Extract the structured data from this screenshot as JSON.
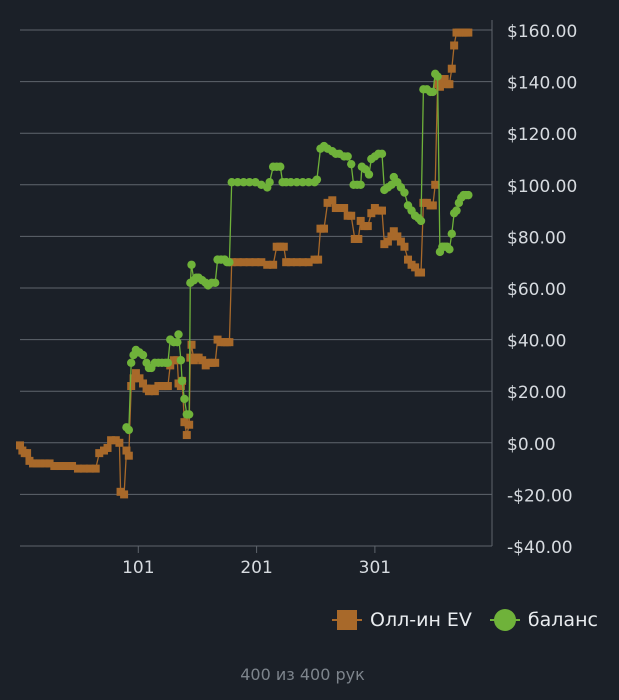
{
  "footer": {
    "summary": "400 из 400 рук"
  },
  "legend": {
    "items": [
      {
        "label": "Олл-ин EV",
        "marker": "square",
        "color": "#a8692a"
      },
      {
        "label": "баланс",
        "marker": "circle",
        "color": "#6fb23a"
      }
    ]
  },
  "colors": {
    "background": "#1b2028",
    "grid": "#5f656d",
    "tick_text": "#d7dbe0"
  },
  "chart_data": {
    "type": "line",
    "xlim": [
      1,
      400
    ],
    "ylim": [
      -40,
      160
    ],
    "x_ticks": [
      {
        "value": 101,
        "label": "101"
      },
      {
        "value": 201,
        "label": "201"
      },
      {
        "value": 301,
        "label": "301"
      }
    ],
    "y_ticks": [
      {
        "value": 160,
        "label": "$160.00"
      },
      {
        "value": 140,
        "label": "$140.00"
      },
      {
        "value": 120,
        "label": "$120.00"
      },
      {
        "value": 100,
        "label": "$100.00"
      },
      {
        "value": 80,
        "label": "$80.00"
      },
      {
        "value": 60,
        "label": "$60.00"
      },
      {
        "value": 40,
        "label": "$40.00"
      },
      {
        "value": 20,
        "label": "$20.00"
      },
      {
        "value": 0,
        "label": "$0.00"
      },
      {
        "value": -20,
        "label": "-$20.00"
      },
      {
        "value": -40,
        "label": "-$40.00"
      }
    ],
    "y_axis_position": "right",
    "grid": true,
    "legend_position": "bottom-right",
    "series": [
      {
        "name": "Олл-ин EV",
        "color": "#a8692a",
        "marker": "square",
        "points": [
          [
            1,
            -1
          ],
          [
            3,
            -3
          ],
          [
            5,
            -4
          ],
          [
            7,
            -4
          ],
          [
            9,
            -7
          ],
          [
            12,
            -8
          ],
          [
            15,
            -8
          ],
          [
            18,
            -8
          ],
          [
            22,
            -8
          ],
          [
            26,
            -8
          ],
          [
            30,
            -9
          ],
          [
            35,
            -9
          ],
          [
            40,
            -9
          ],
          [
            45,
            -9
          ],
          [
            50,
            -10
          ],
          [
            55,
            -10
          ],
          [
            60,
            -10
          ],
          [
            65,
            -10
          ],
          [
            68,
            -4
          ],
          [
            72,
            -3
          ],
          [
            75,
            -2
          ],
          [
            78,
            1
          ],
          [
            82,
            1
          ],
          [
            85,
            0
          ],
          [
            86,
            -19
          ],
          [
            89,
            -20
          ],
          [
            91,
            -3
          ],
          [
            93,
            -5
          ],
          [
            95,
            22
          ],
          [
            97,
            25
          ],
          [
            99,
            27
          ],
          [
            102,
            25
          ],
          [
            105,
            23
          ],
          [
            108,
            21
          ],
          [
            110,
            20
          ],
          [
            112,
            21
          ],
          [
            115,
            20
          ],
          [
            118,
            22
          ],
          [
            121,
            22
          ],
          [
            124,
            22
          ],
          [
            126,
            22
          ],
          [
            128,
            30
          ],
          [
            131,
            32
          ],
          [
            134,
            32
          ],
          [
            135,
            23
          ],
          [
            137,
            22
          ],
          [
            138,
            24
          ],
          [
            140,
            8
          ],
          [
            142,
            3
          ],
          [
            144,
            7
          ],
          [
            145,
            33
          ],
          [
            146,
            38
          ],
          [
            148,
            32
          ],
          [
            150,
            33
          ],
          [
            152,
            33
          ],
          [
            155,
            32
          ],
          [
            158,
            30
          ],
          [
            160,
            31
          ],
          [
            163,
            31
          ],
          [
            166,
            31
          ],
          [
            168,
            40
          ],
          [
            171,
            39
          ],
          [
            174,
            39
          ],
          [
            176,
            39
          ],
          [
            178,
            39
          ],
          [
            180,
            70
          ],
          [
            185,
            70
          ],
          [
            190,
            70
          ],
          [
            195,
            70
          ],
          [
            200,
            70
          ],
          [
            205,
            70
          ],
          [
            210,
            69
          ],
          [
            215,
            69
          ],
          [
            218,
            76
          ],
          [
            221,
            76
          ],
          [
            224,
            76
          ],
          [
            226,
            70
          ],
          [
            230,
            70
          ],
          [
            235,
            70
          ],
          [
            240,
            70
          ],
          [
            245,
            70
          ],
          [
            250,
            71
          ],
          [
            253,
            71
          ],
          [
            255,
            83
          ],
          [
            258,
            83
          ],
          [
            261,
            93
          ],
          [
            265,
            94
          ],
          [
            268,
            91
          ],
          [
            271,
            91
          ],
          [
            275,
            91
          ],
          [
            278,
            88
          ],
          [
            281,
            88
          ],
          [
            284,
            79
          ],
          [
            287,
            79
          ],
          [
            289,
            86
          ],
          [
            292,
            84
          ],
          [
            295,
            84
          ],
          [
            298,
            89
          ],
          [
            301,
            91
          ],
          [
            304,
            90
          ],
          [
            307,
            90
          ],
          [
            309,
            77
          ],
          [
            312,
            78
          ],
          [
            315,
            80
          ],
          [
            317,
            82
          ],
          [
            320,
            80
          ],
          [
            323,
            78
          ],
          [
            326,
            76
          ],
          [
            329,
            71
          ],
          [
            332,
            69
          ],
          [
            335,
            68
          ],
          [
            338,
            66
          ],
          [
            340,
            66
          ],
          [
            342,
            93
          ],
          [
            345,
            93
          ],
          [
            348,
            92
          ],
          [
            350,
            92
          ],
          [
            352,
            100
          ],
          [
            354,
            139
          ],
          [
            356,
            138
          ],
          [
            358,
            140
          ],
          [
            360,
            141
          ],
          [
            362,
            139
          ],
          [
            364,
            139
          ],
          [
            366,
            145
          ],
          [
            368,
            154
          ],
          [
            370,
            159
          ],
          [
            372,
            159
          ],
          [
            374,
            159
          ],
          [
            376,
            159
          ],
          [
            378,
            159
          ],
          [
            380,
            159
          ]
        ]
      },
      {
        "name": "баланс",
        "color": "#6fb23a",
        "marker": "circle",
        "points": [
          [
            91,
            6
          ],
          [
            93,
            5
          ],
          [
            95,
            31
          ],
          [
            97,
            34
          ],
          [
            99,
            36
          ],
          [
            102,
            35
          ],
          [
            105,
            34
          ],
          [
            108,
            31
          ],
          [
            110,
            29
          ],
          [
            112,
            29
          ],
          [
            115,
            31
          ],
          [
            118,
            31
          ],
          [
            121,
            31
          ],
          [
            124,
            31
          ],
          [
            126,
            31
          ],
          [
            128,
            40
          ],
          [
            131,
            39
          ],
          [
            134,
            39
          ],
          [
            135,
            42
          ],
          [
            137,
            32
          ],
          [
            138,
            24
          ],
          [
            140,
            17
          ],
          [
            142,
            11
          ],
          [
            144,
            11
          ],
          [
            145,
            62
          ],
          [
            146,
            69
          ],
          [
            148,
            63
          ],
          [
            150,
            64
          ],
          [
            152,
            64
          ],
          [
            155,
            63
          ],
          [
            158,
            62
          ],
          [
            160,
            61
          ],
          [
            163,
            62
          ],
          [
            166,
            62
          ],
          [
            168,
            71
          ],
          [
            171,
            71
          ],
          [
            174,
            71
          ],
          [
            176,
            70
          ],
          [
            178,
            70
          ],
          [
            180,
            101
          ],
          [
            185,
            101
          ],
          [
            190,
            101
          ],
          [
            195,
            101
          ],
          [
            200,
            101
          ],
          [
            205,
            100
          ],
          [
            210,
            99
          ],
          [
            212,
            101
          ],
          [
            215,
            107
          ],
          [
            218,
            107
          ],
          [
            221,
            107
          ],
          [
            223,
            101
          ],
          [
            226,
            101
          ],
          [
            230,
            101
          ],
          [
            235,
            101
          ],
          [
            240,
            101
          ],
          [
            245,
            101
          ],
          [
            250,
            101
          ],
          [
            252,
            102
          ],
          [
            255,
            114
          ],
          [
            258,
            115
          ],
          [
            261,
            114
          ],
          [
            265,
            113
          ],
          [
            268,
            112
          ],
          [
            271,
            112
          ],
          [
            275,
            111
          ],
          [
            278,
            111
          ],
          [
            281,
            108
          ],
          [
            283,
            100
          ],
          [
            286,
            100
          ],
          [
            289,
            100
          ],
          [
            290,
            107
          ],
          [
            293,
            106
          ],
          [
            296,
            104
          ],
          [
            298,
            110
          ],
          [
            301,
            111
          ],
          [
            304,
            112
          ],
          [
            307,
            112
          ],
          [
            309,
            98
          ],
          [
            312,
            99
          ],
          [
            315,
            100
          ],
          [
            317,
            103
          ],
          [
            320,
            101
          ],
          [
            323,
            99
          ],
          [
            326,
            97
          ],
          [
            329,
            92
          ],
          [
            332,
            90
          ],
          [
            335,
            88
          ],
          [
            338,
            87
          ],
          [
            340,
            86
          ],
          [
            342,
            137
          ],
          [
            345,
            137
          ],
          [
            348,
            136
          ],
          [
            350,
            136
          ],
          [
            352,
            143
          ],
          [
            354,
            142
          ],
          [
            356,
            74
          ],
          [
            358,
            76
          ],
          [
            360,
            76
          ],
          [
            362,
            76
          ],
          [
            364,
            75
          ],
          [
            366,
            81
          ],
          [
            368,
            89
          ],
          [
            370,
            90
          ],
          [
            372,
            93
          ],
          [
            374,
            95
          ],
          [
            376,
            96
          ],
          [
            378,
            96
          ],
          [
            380,
            96
          ]
        ]
      }
    ]
  }
}
